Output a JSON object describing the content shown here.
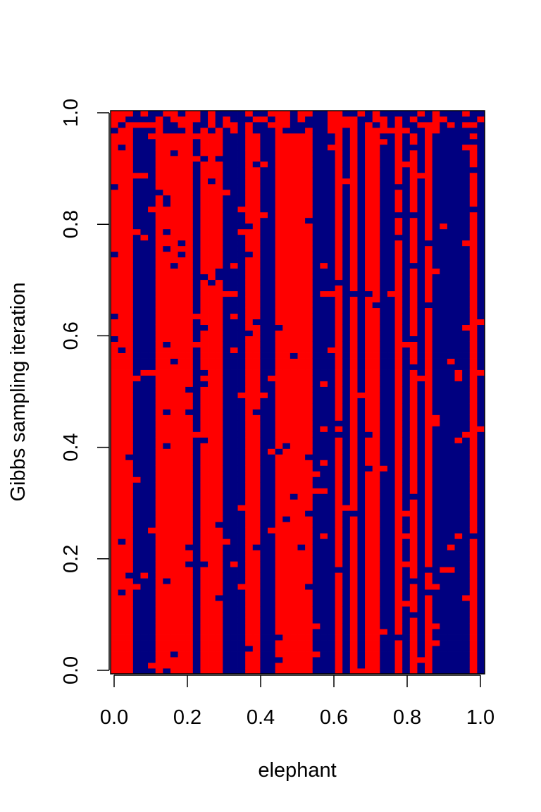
{
  "chart_data": {
    "type": "heatmap",
    "title": "",
    "xlabel": "elephant",
    "ylabel": "Gibbs sampling iteration",
    "xlim": [
      0.0,
      1.0
    ],
    "ylim": [
      0.0,
      1.0
    ],
    "x_ticks": [
      "0.0",
      "0.2",
      "0.4",
      "0.6",
      "0.8",
      "1.0"
    ],
    "y_ticks": [
      "0.0",
      "0.2",
      "0.4",
      "0.6",
      "0.8",
      "1.0"
    ],
    "grid": false,
    "legend": "none",
    "colors": {
      "state_0": "#000080",
      "state_1": "#ff0000"
    },
    "n_columns": 50,
    "n_rows": 100,
    "column_base_state": [
      1,
      1,
      1,
      0,
      0,
      0,
      1,
      1,
      1,
      1,
      1,
      0,
      1,
      1,
      1,
      0,
      0,
      0,
      1,
      1,
      0,
      0,
      1,
      1,
      1,
      1,
      1,
      0,
      0,
      0,
      1,
      0,
      1,
      0,
      1,
      1,
      0,
      0,
      1,
      0,
      1,
      0,
      1,
      0,
      0,
      0,
      0,
      0,
      1,
      0
    ],
    "note": "Each column is a binary chain over iterations; 1 = red, 0 = navy. Values read as column-wise dominant states from the trace plot."
  }
}
